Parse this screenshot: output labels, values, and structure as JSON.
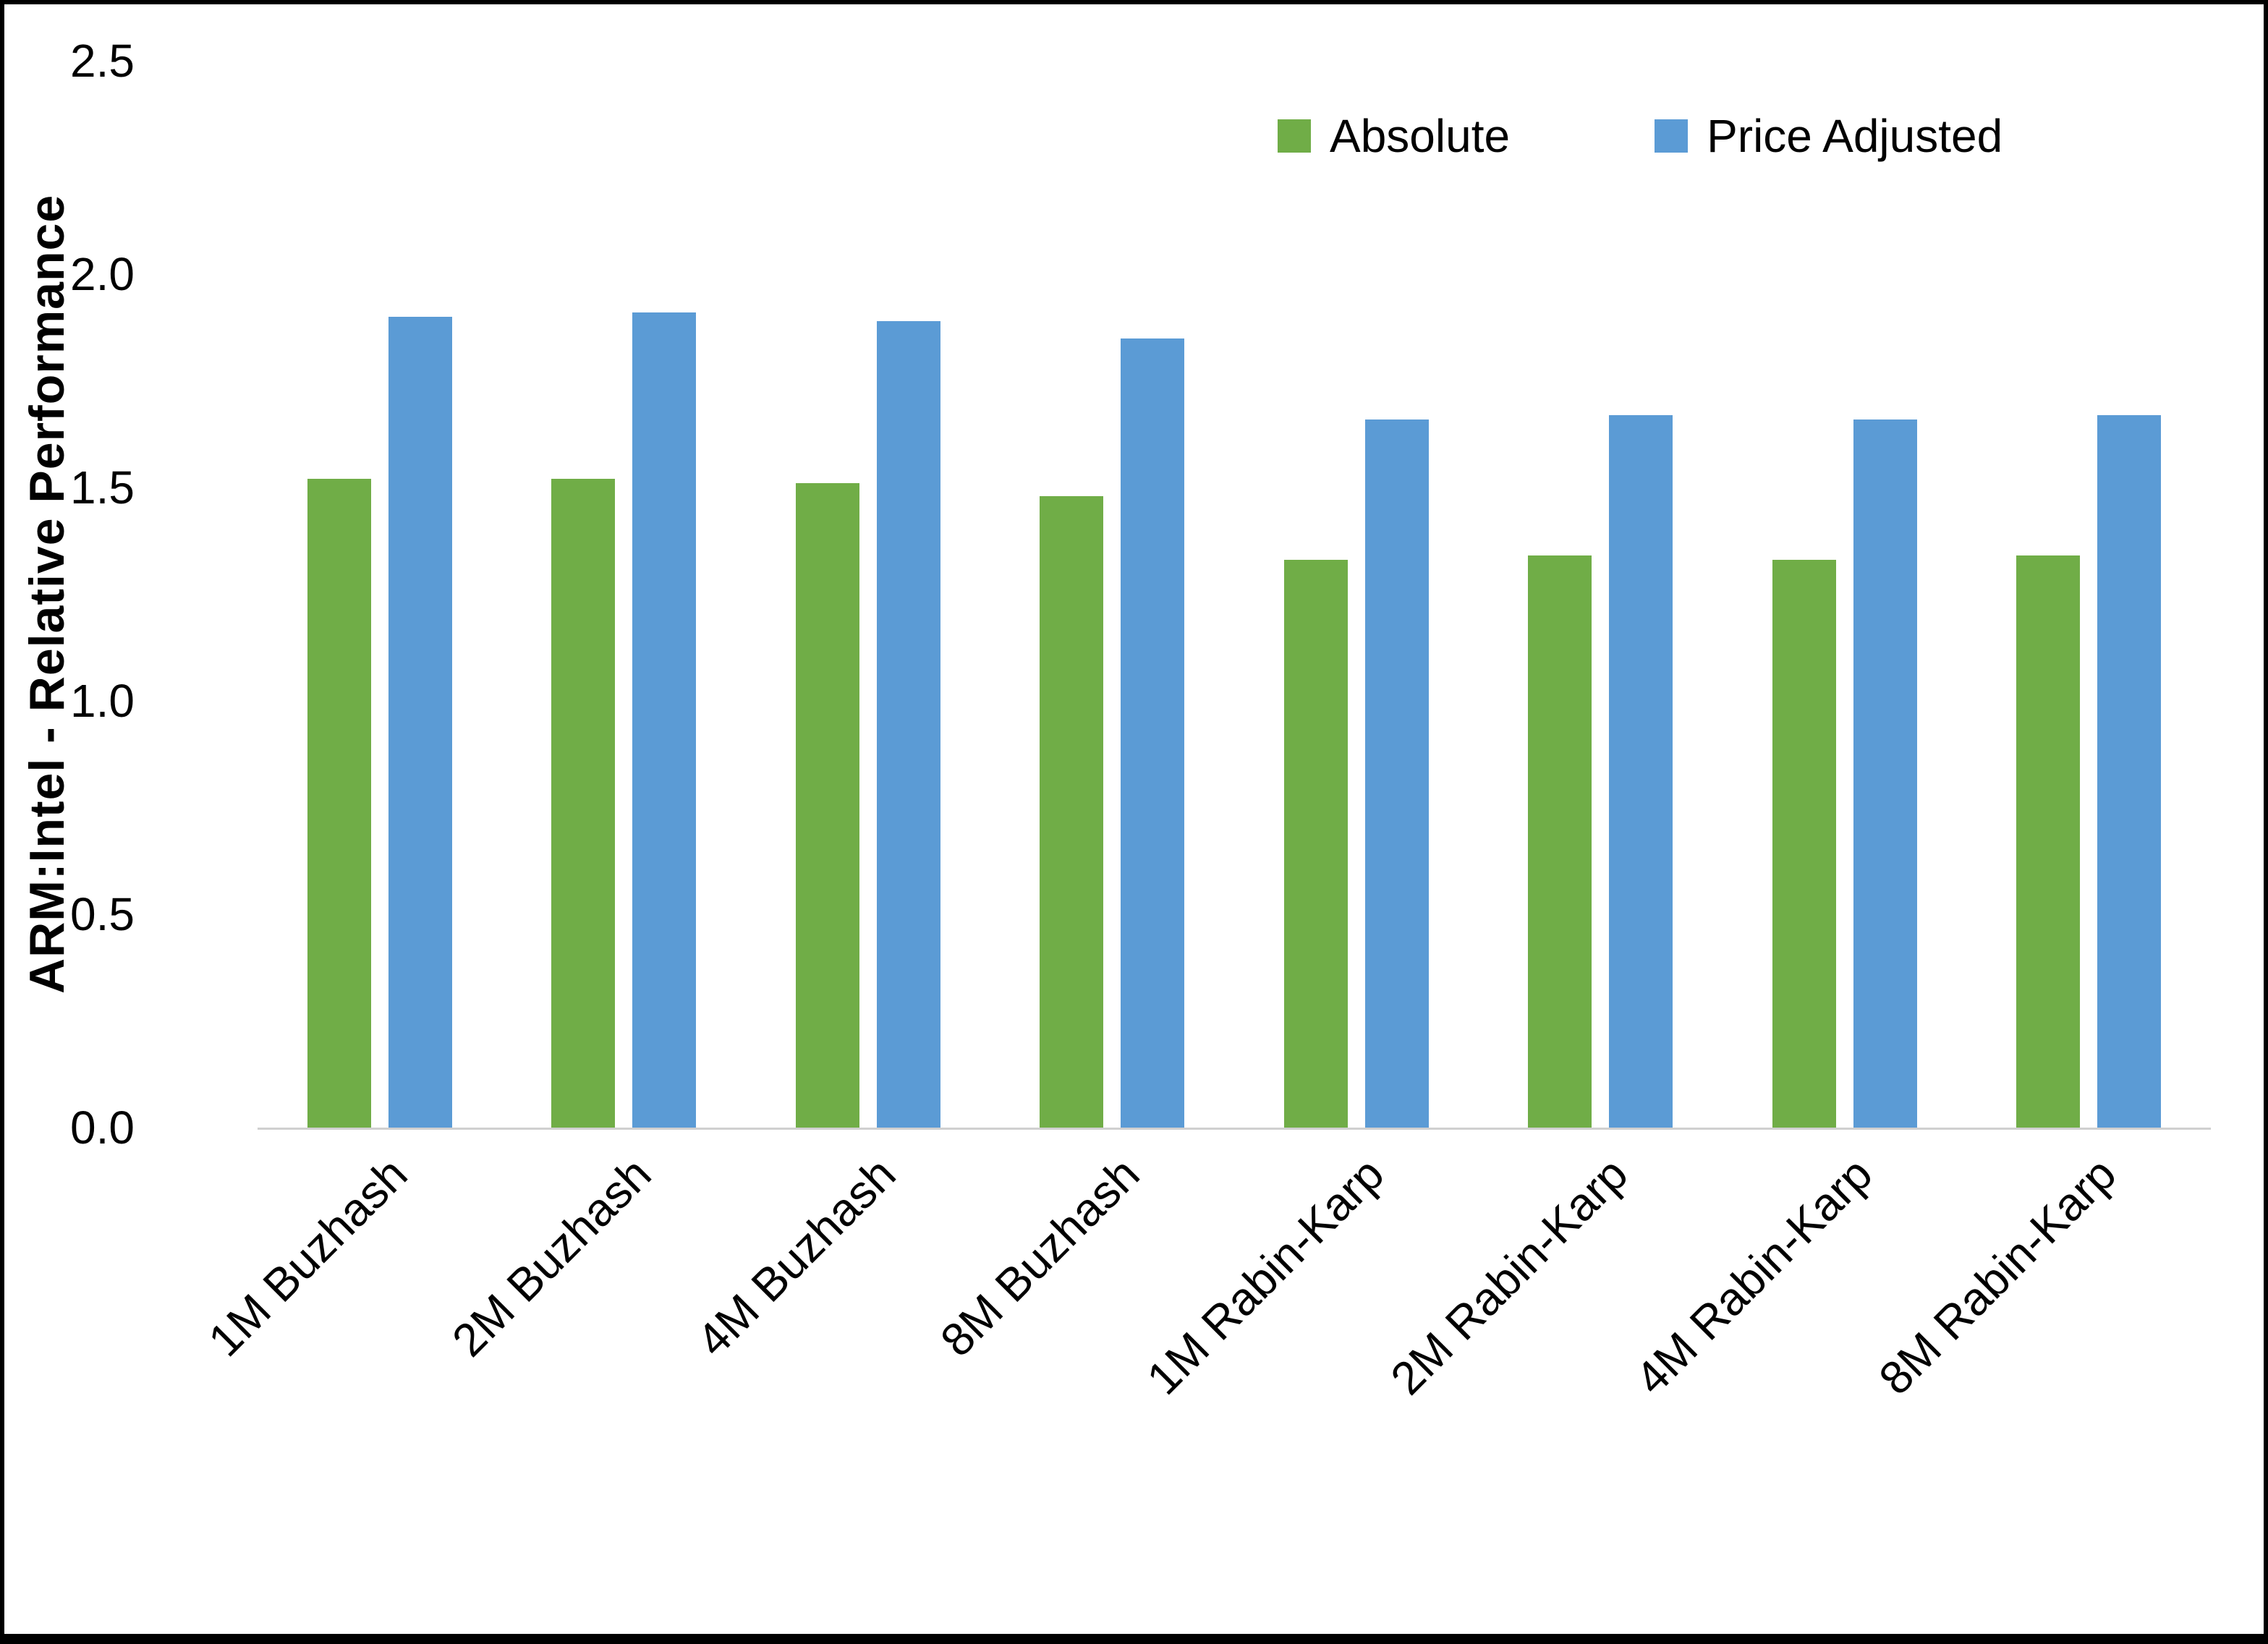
{
  "chart_data": {
    "type": "bar",
    "title": "",
    "categories": [
      "1M Buzhash",
      "2M Buzhash",
      "4M Buzhash",
      "8M Buzhash",
      "1M Rabin-Karp",
      "2M Rabin-Karp",
      "4M Rabin-Karp",
      "8M Rabin-Karp"
    ],
    "series": [
      {
        "name": "Absolute",
        "color": "#70AD47",
        "values": [
          1.52,
          1.52,
          1.51,
          1.48,
          1.33,
          1.34,
          1.33,
          1.34
        ]
      },
      {
        "name": "Price Adjusted",
        "color": "#5B9BD5",
        "values": [
          1.9,
          1.91,
          1.89,
          1.85,
          1.66,
          1.67,
          1.66,
          1.67
        ]
      }
    ],
    "xlabel": "",
    "ylabel": "ARM:Intel - Relative Performance",
    "ylim": [
      0,
      2.5
    ],
    "ytick_labels": [
      "0.0",
      "0.5",
      "1.0",
      "1.5",
      "2.0",
      "2.5"
    ],
    "grid": false,
    "legend": {
      "position": "top-right",
      "entries": [
        "Absolute",
        "Price Adjusted"
      ]
    },
    "colors": {
      "axis_line": "#D0D0D0",
      "text": "#000000",
      "frame_border": "#000000"
    }
  }
}
